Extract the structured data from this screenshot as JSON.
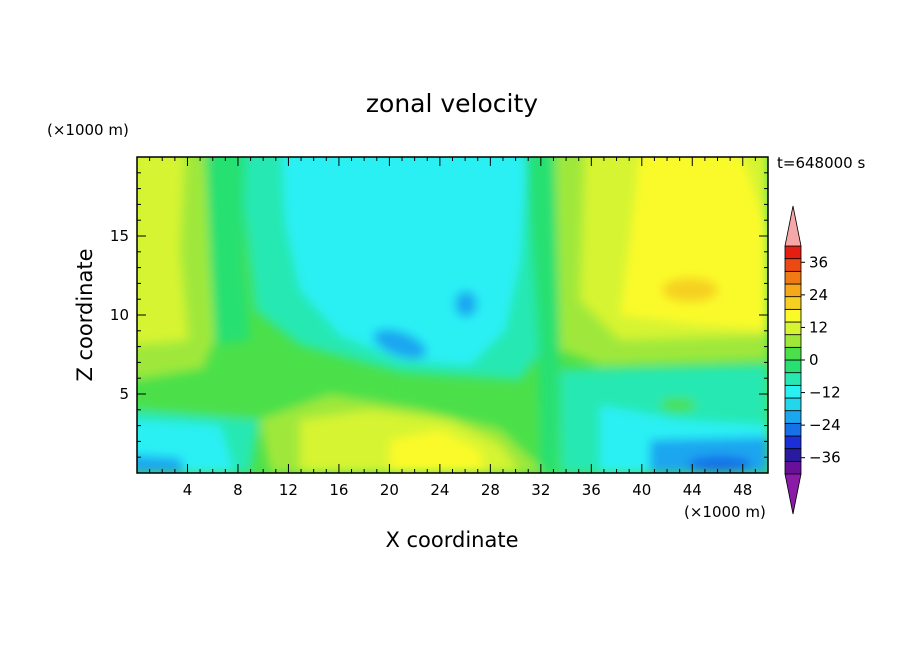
{
  "chart_data": {
    "type": "heatmap",
    "title": "zonal velocity",
    "xlabel": "X coordinate",
    "ylabel": "Z coordinate",
    "x_unit": "(×1000 m)",
    "y_unit": "(×1000 m)",
    "time_label": "t=648000 s",
    "xlim": [
      0,
      50
    ],
    "ylim": [
      0,
      20
    ],
    "x_ticks": [
      4,
      8,
      12,
      16,
      20,
      24,
      28,
      32,
      36,
      40,
      44,
      48
    ],
    "y_ticks": [
      5,
      10,
      15
    ],
    "colorbar": {
      "levels": [
        -42,
        -36,
        -30,
        -24,
        -18,
        -12,
        -6,
        0,
        6,
        12,
        18,
        24,
        30,
        36,
        42
      ],
      "tick_values": [
        -36,
        -24,
        -12,
        0,
        12,
        24,
        36
      ],
      "tick_labels": [
        "−36",
        "−24",
        "−12",
        "0",
        "12",
        "24",
        "36"
      ],
      "colors": [
        "#6a0f9a",
        "#2a1aa0",
        "#1a2fd8",
        "#1670e8",
        "#1ba6f0",
        "#22d6ec",
        "#2af0f4",
        "#28e8b2",
        "#27e072",
        "#4be04a",
        "#9fe83a",
        "#d6f432",
        "#fafa2a",
        "#f6d020",
        "#f6a818",
        "#f07a14",
        "#ec4a12",
        "#e41e10"
      ],
      "under_color": "#8a1aa8",
      "over_color": "#f6a8a8",
      "extend": "both"
    },
    "grid": false
  }
}
